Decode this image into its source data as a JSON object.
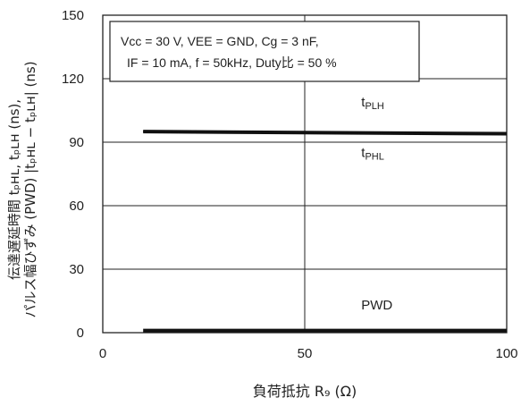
{
  "chart_data": {
    "type": "line",
    "title": "",
    "xlabel": "負荷抵抗 R₉ (Ω)",
    "ylabel_line1": "伝達遅延時間 tₚʜʟ, tₚʟʜ (ns),",
    "ylabel_line2": "パルス幅ひずみ (PWD) |tₚʜʟ − tₚʟʜ| (ns)",
    "xlim": [
      0,
      100
    ],
    "ylim": [
      0,
      150
    ],
    "x_ticks": [
      0,
      50,
      100
    ],
    "y_ticks": [
      0,
      30,
      60,
      90,
      120,
      150
    ],
    "grid": true,
    "conditions": [
      "Vcc = 30 V, VEE = GND, Cg = 3 nF,",
      "IF = 10 mA, f = 50kHz, Duty比 = 50 %"
    ],
    "series": [
      {
        "name": "tPLH",
        "x": [
          10,
          100
        ],
        "y": [
          95,
          94
        ]
      },
      {
        "name": "tPHL",
        "x": [
          10,
          100
        ],
        "y": [
          95,
          94
        ]
      },
      {
        "name": "PWD",
        "x": [
          10,
          100
        ],
        "y": [
          1,
          1
        ]
      }
    ],
    "annotations": [
      {
        "text": "tPLH",
        "x": 64,
        "y": 107
      },
      {
        "text": "tPHL",
        "x": 64,
        "y": 83
      },
      {
        "text": "PWD",
        "x": 64,
        "y": 11
      }
    ]
  }
}
